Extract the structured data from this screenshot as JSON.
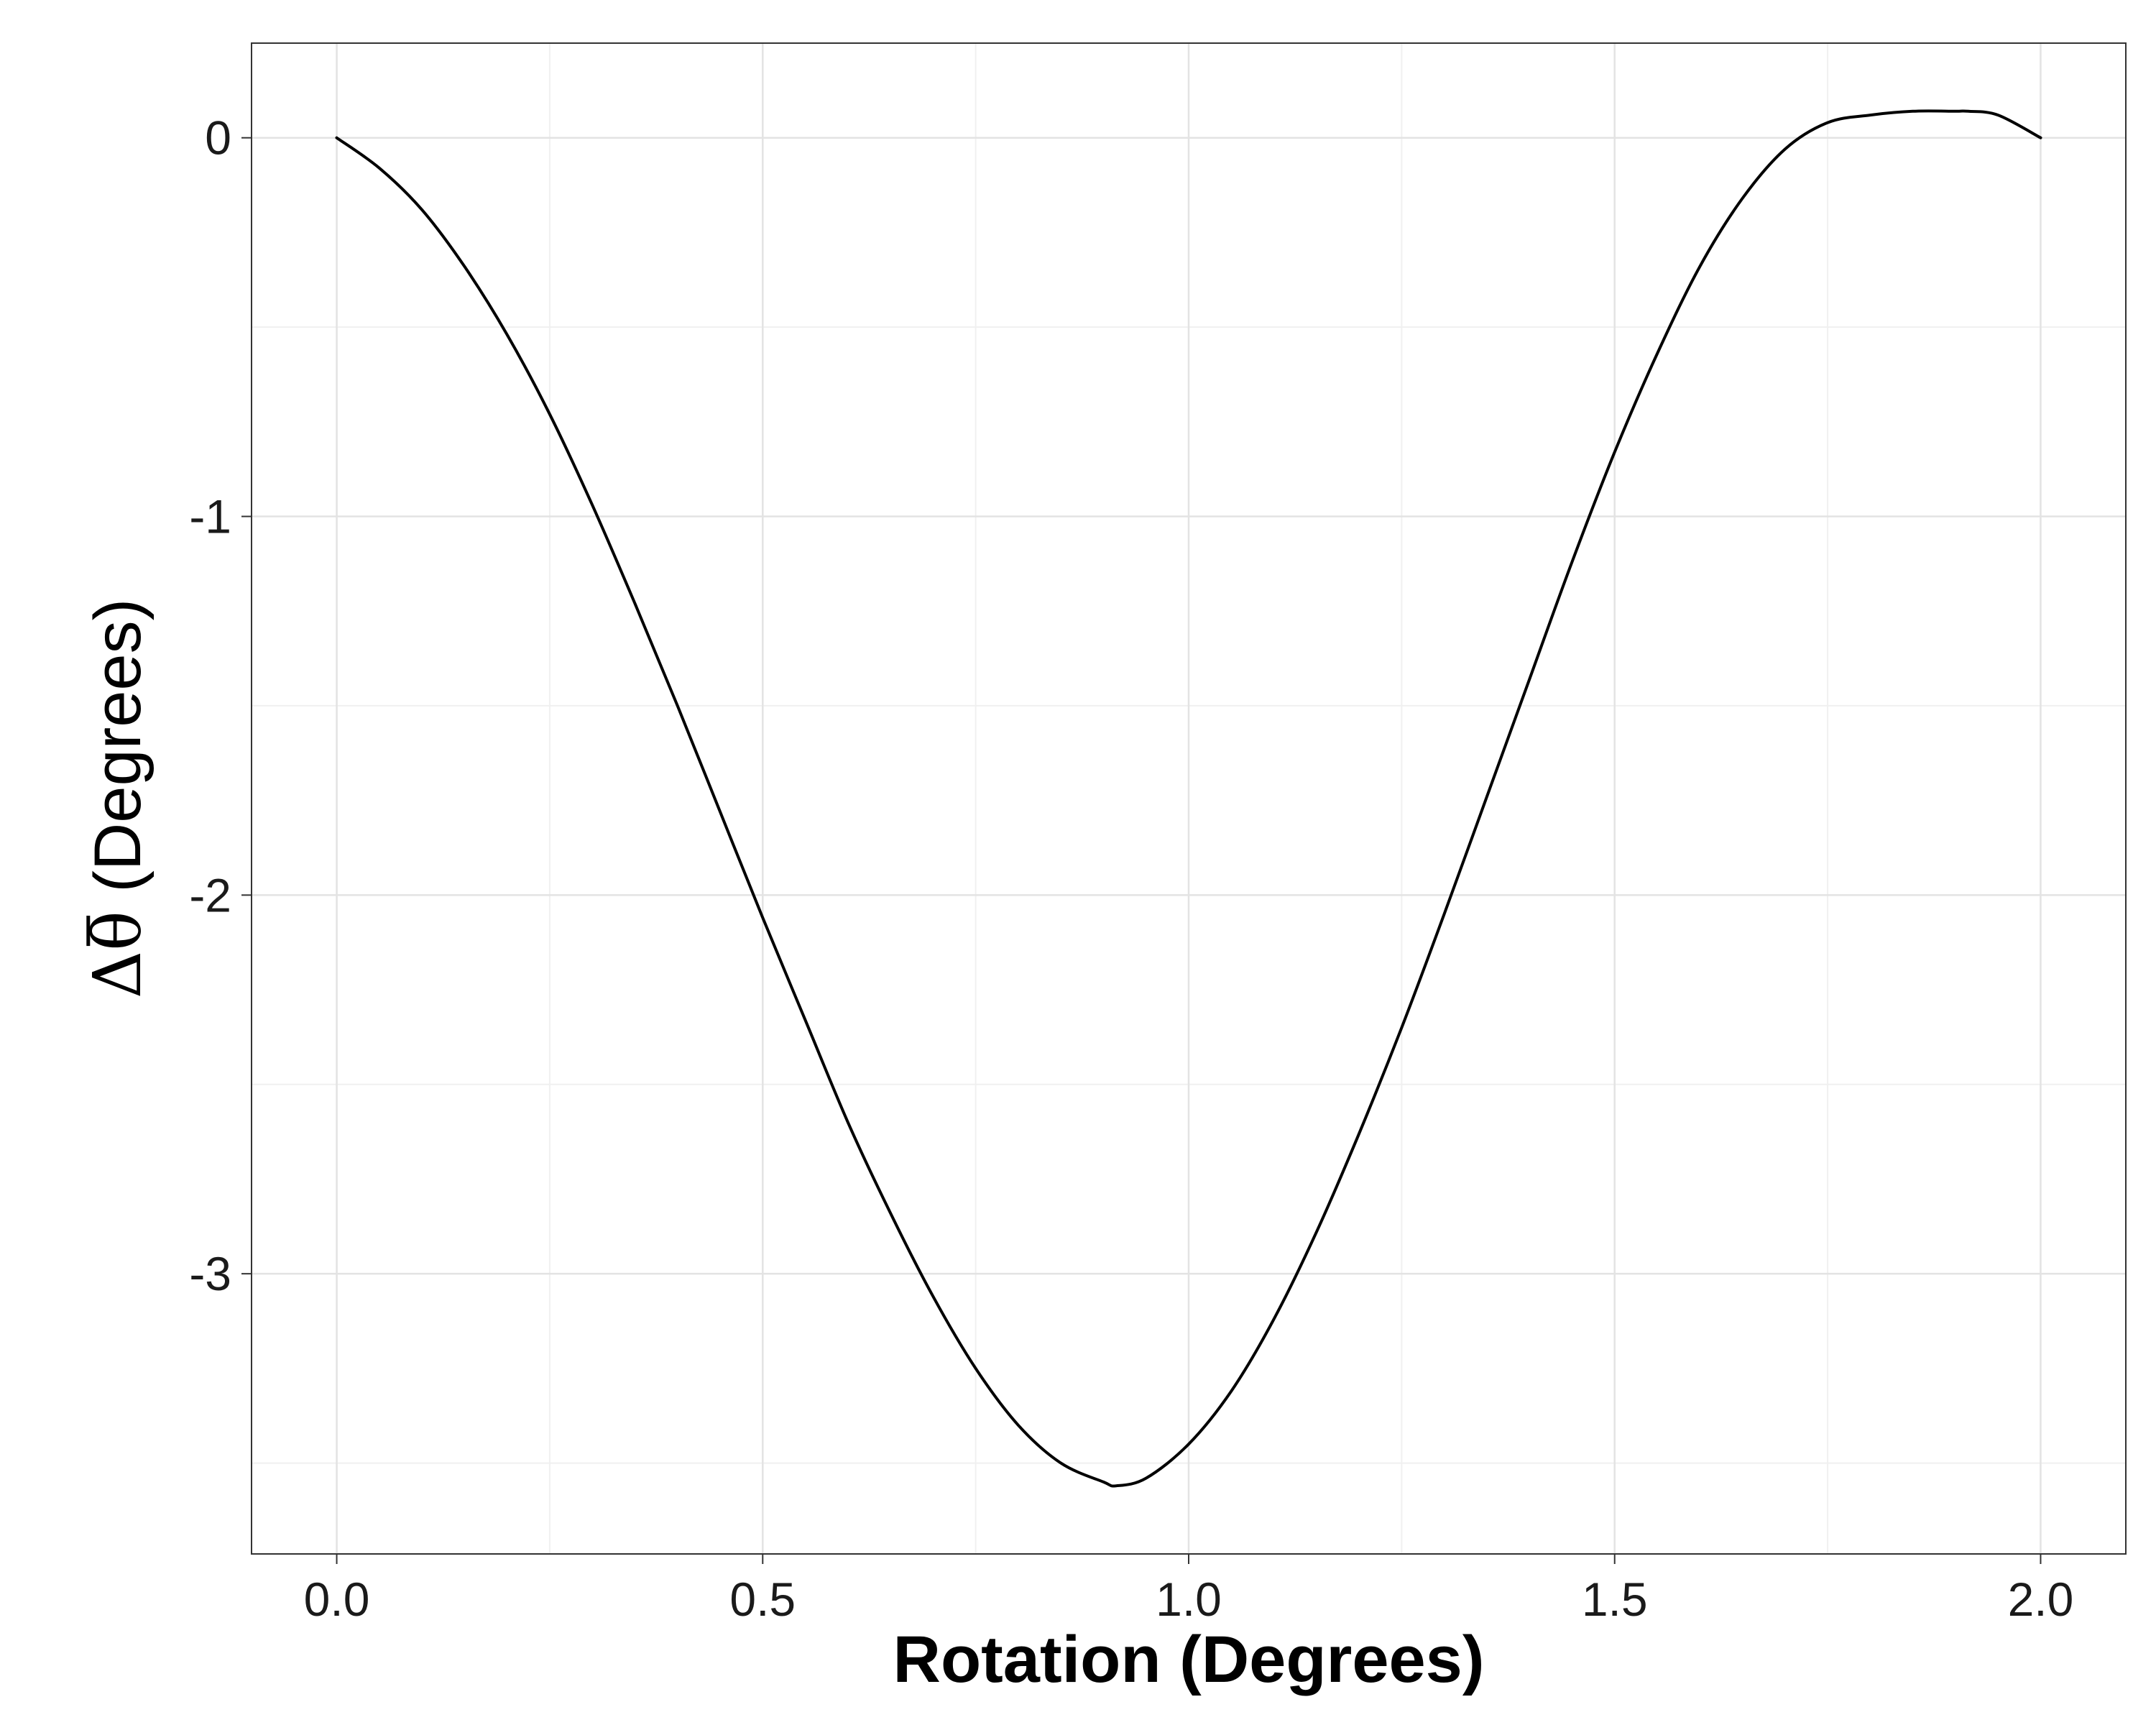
{
  "chart_data": {
    "type": "line",
    "title": "",
    "xlabel": "Rotation (Degrees)",
    "ylabel": {
      "symbol_delta": "Δ",
      "symbol_theta": "θ",
      "text": " (Degrees)"
    },
    "xlim": [
      -0.1,
      2.1
    ],
    "ylim": [
      -3.74,
      0.25
    ],
    "x_ticks": [
      {
        "value": 0.0,
        "label": "0.0"
      },
      {
        "value": 0.5,
        "label": "0.5"
      },
      {
        "value": 1.0,
        "label": "1.0"
      },
      {
        "value": 1.5,
        "label": "1.5"
      },
      {
        "value": 2.0,
        "label": "2.0"
      }
    ],
    "y_ticks": [
      {
        "value": 0,
        "label": "0"
      },
      {
        "value": -1,
        "label": "-1"
      },
      {
        "value": -2,
        "label": "-2"
      },
      {
        "value": -3,
        "label": "-3"
      }
    ],
    "x_minor_grid": [
      0.25,
      0.75,
      1.25,
      1.75
    ],
    "y_minor_grid": [
      -0.5,
      -1.5,
      -2.5,
      -3.5
    ],
    "grid": true,
    "legend": "none",
    "series": [
      {
        "color": "#000000",
        "x": [
          0.0,
          0.05,
          0.1,
          0.15,
          0.2,
          0.25,
          0.3,
          0.35,
          0.4,
          0.45,
          0.5,
          0.55,
          0.6,
          0.65,
          0.7,
          0.75,
          0.8,
          0.85,
          0.9,
          0.915,
          0.95,
          1.0,
          1.05,
          1.1,
          1.15,
          1.2,
          1.25,
          1.3,
          1.35,
          1.4,
          1.45,
          1.5,
          1.55,
          1.6,
          1.65,
          1.7,
          1.75,
          1.8,
          1.85,
          1.9,
          1.915,
          1.95,
          2.0
        ],
        "y": [
          0.0,
          -0.08,
          -0.19,
          -0.34,
          -0.52,
          -0.73,
          -0.97,
          -1.23,
          -1.5,
          -1.78,
          -2.06,
          -2.33,
          -2.6,
          -2.84,
          -3.06,
          -3.25,
          -3.4,
          -3.5,
          -3.55,
          -3.56,
          -3.54,
          -3.45,
          -3.31,
          -3.12,
          -2.89,
          -2.63,
          -2.35,
          -2.05,
          -1.74,
          -1.43,
          -1.12,
          -0.83,
          -0.57,
          -0.34,
          -0.16,
          -0.03,
          0.04,
          0.06,
          0.07,
          0.07,
          0.07,
          0.06,
          0.0
        ]
      }
    ]
  }
}
